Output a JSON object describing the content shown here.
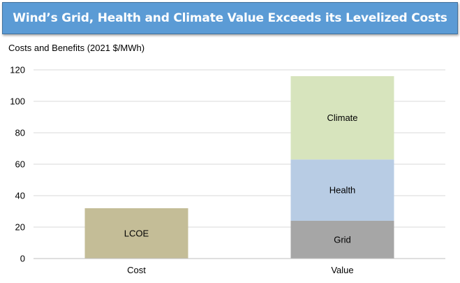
{
  "title": "Wind’s Grid, Health and Climate Value Exceeds its Levelized Costs",
  "colors": {
    "title_bg": "#5b9bd5",
    "title_text": "#ffffff",
    "gridline": "#d9d9d9"
  },
  "chart_data": {
    "type": "bar",
    "stacked": true,
    "title": "Wind’s Grid, Health and Climate Value Exceeds its Levelized Costs",
    "ylabel": "Costs and Benefits (2021 $/MWh)",
    "xlabel": "",
    "categories": [
      "Cost",
      "Value"
    ],
    "ylim": [
      0,
      120
    ],
    "yticks": [
      0,
      20,
      40,
      60,
      80,
      100,
      120
    ],
    "grid": true,
    "legend": "none",
    "series": [
      {
        "name": "LCOE",
        "values": [
          32,
          0
        ],
        "color": "#c4bd97"
      },
      {
        "name": "Grid",
        "values": [
          0,
          24
        ],
        "color": "#a6a6a6"
      },
      {
        "name": "Health",
        "values": [
          0,
          39
        ],
        "color": "#b8cce4"
      },
      {
        "name": "Climate",
        "values": [
          0,
          53
        ],
        "color": "#d7e4bd"
      }
    ]
  }
}
